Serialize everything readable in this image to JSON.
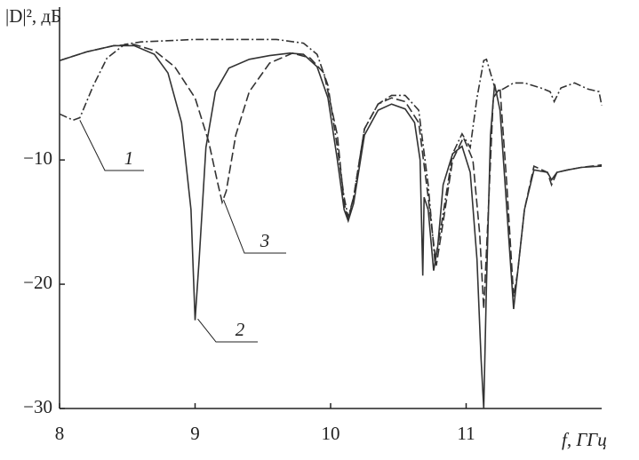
{
  "chart_data": {
    "type": "line",
    "y_label": "|D|², дБ",
    "x_label": "f, ГГц",
    "xlim": [
      8,
      12
    ],
    "ylim": [
      -30,
      2.3
    ],
    "xticks": [
      8,
      9,
      10,
      11
    ],
    "yticks": [
      {
        "value": -10,
        "label": "−10"
      },
      {
        "value": -20,
        "label": "−20"
      },
      {
        "value": -30,
        "label": "−30"
      }
    ],
    "grid": false,
    "series": [
      {
        "name": "1",
        "color": "#333333",
        "line_style": "dashdot",
        "x": [
          8,
          8.1,
          8.15,
          8.25,
          8.35,
          8.48,
          8.6,
          8.8,
          9.0,
          9.3,
          9.6,
          9.8,
          9.9,
          9.98,
          10.05,
          10.1,
          10.13,
          10.17,
          10.25,
          10.35,
          10.45,
          10.55,
          10.65,
          10.72,
          10.77,
          10.82,
          10.9,
          10.97,
          11.03,
          11.08,
          11.13,
          11.15,
          11.18,
          11.22,
          11.27,
          11.35,
          11.43,
          11.55,
          11.62,
          11.65,
          11.7,
          11.8,
          11.9,
          11.98,
          12
        ],
        "values": [
          -6.3,
          -6.8,
          -6.6,
          -4,
          -1.8,
          -0.7,
          -0.5,
          -0.4,
          -0.3,
          -0.3,
          -0.3,
          -0.6,
          -1.5,
          -4,
          -9,
          -13,
          -14.6,
          -13,
          -7.5,
          -5.5,
          -4.8,
          -4.8,
          -6,
          -12,
          -18.2,
          -15,
          -9.5,
          -7.9,
          -9,
          -5,
          -2,
          -1.9,
          -3,
          -4.5,
          -4.3,
          -3.8,
          -3.8,
          -4.2,
          -4.5,
          -5.3,
          -4.2,
          -3.8,
          -4.3,
          -4.5,
          -5.6
        ]
      },
      {
        "name": "2",
        "color": "#333333",
        "line_style": "solid",
        "x": [
          8,
          8.2,
          8.4,
          8.55,
          8.7,
          8.8,
          8.9,
          8.97,
          9.0,
          9.03,
          9.08,
          9.15,
          9.25,
          9.4,
          9.55,
          9.7,
          9.8,
          9.9,
          9.98,
          10.05,
          10.1,
          10.13,
          10.17,
          10.25,
          10.35,
          10.45,
          10.55,
          10.62,
          10.66,
          10.68,
          10.69,
          10.72,
          10.76,
          10.79,
          10.83,
          10.9,
          10.97,
          11.03,
          11.08,
          11.11,
          11.13,
          11.15,
          11.18,
          11.21,
          11.25,
          11.3,
          11.35,
          11.38,
          11.43,
          11.5,
          11.6,
          11.63,
          11.67,
          11.75,
          11.85,
          12
        ],
        "values": [
          -2,
          -1.3,
          -0.8,
          -0.8,
          -1.5,
          -3,
          -7,
          -14,
          -22.9,
          -18,
          -9,
          -4.5,
          -2.6,
          -1.9,
          -1.6,
          -1.4,
          -1.5,
          -2.5,
          -5,
          -10,
          -14,
          -14.9,
          -13.5,
          -8,
          -6,
          -5.5,
          -5.9,
          -7,
          -10,
          -19.3,
          -13,
          -14,
          -18.9,
          -17,
          -12,
          -9.5,
          -8.9,
          -11,
          -18,
          -26,
          -30,
          -20,
          -8,
          -3.9,
          -6,
          -14,
          -22,
          -19,
          -14,
          -10.8,
          -11,
          -11.6,
          -11,
          -10.8,
          -10.6,
          -10.5
        ]
      },
      {
        "name": "3",
        "color": "#333333",
        "line_style": "dashed",
        "x": [
          8,
          8.2,
          8.4,
          8.55,
          8.7,
          8.85,
          9.0,
          9.1,
          9.17,
          9.2,
          9.23,
          9.3,
          9.4,
          9.55,
          9.72,
          9.85,
          9.95,
          10.05,
          10.1,
          10.13,
          10.17,
          10.25,
          10.35,
          10.45,
          10.55,
          10.65,
          10.72,
          10.78,
          10.83,
          10.9,
          10.98,
          11.05,
          11.1,
          11.13,
          11.16,
          11.2,
          11.25,
          11.3,
          11.35,
          11.38,
          11.43,
          11.5,
          11.6,
          11.63,
          11.67,
          11.75,
          11.85,
          12
        ],
        "values": [
          -2,
          -1.3,
          -0.8,
          -0.7,
          -1.2,
          -2.5,
          -5,
          -8.5,
          -12,
          -13.4,
          -12.5,
          -8,
          -4.5,
          -2.2,
          -1.4,
          -1.8,
          -3,
          -8,
          -13.5,
          -14.8,
          -13,
          -7.5,
          -5.5,
          -5,
          -5.3,
          -7,
          -13,
          -18.5,
          -15,
          -10,
          -8.2,
          -10,
          -16,
          -22,
          -15,
          -5,
          -4.2,
          -12,
          -21,
          -19,
          -14,
          -10.5,
          -11,
          -12,
          -11,
          -10.8,
          -10.6,
          -10.4
        ]
      }
    ]
  }
}
